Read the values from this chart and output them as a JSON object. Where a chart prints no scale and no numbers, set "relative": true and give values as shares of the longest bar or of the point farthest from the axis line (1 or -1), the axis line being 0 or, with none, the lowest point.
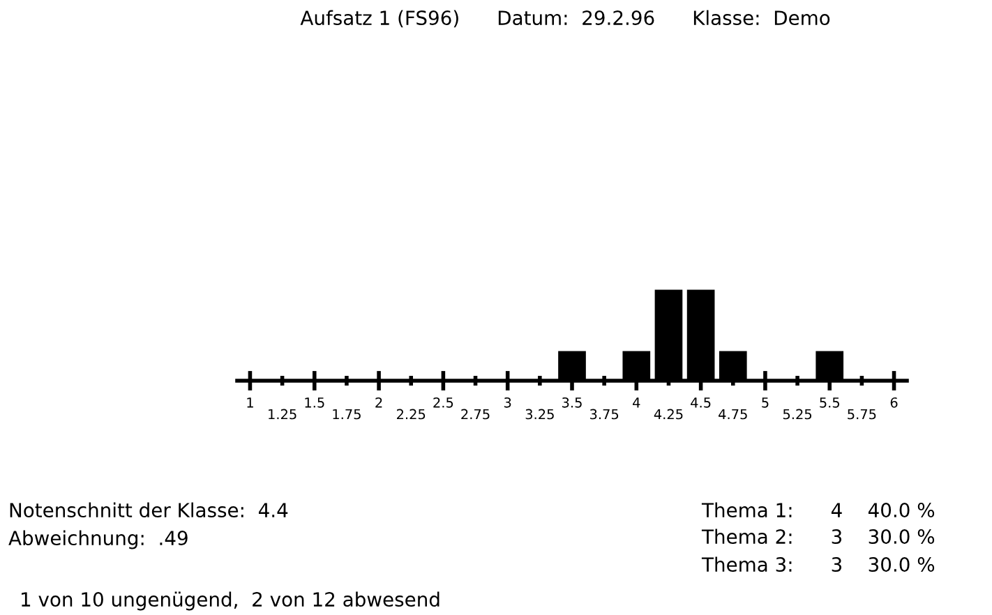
{
  "chart_data": {
    "type": "bar",
    "title": "Aufsatz 1 (FS96)      Datum:  29.2.96      Klasse:  Demo",
    "x": [
      3.5,
      4,
      4.25,
      4.5,
      4.75,
      5.5
    ],
    "values": [
      0.333,
      0.333,
      1,
      1,
      0.333,
      0.333
    ],
    "relative": true,
    "color": "#000000",
    "xlim": [
      0.9,
      6.1
    ],
    "xticks": [
      1,
      1.5,
      2,
      2.5,
      3,
      3.5,
      4,
      4.5,
      5,
      5.5,
      6
    ],
    "x2lim": [
      0.9,
      6.1
    ],
    "x2ticks": [
      1.25,
      1.75,
      2.25,
      2.75,
      3.25,
      3.75,
      4.25,
      4.75,
      5.25,
      5.75
    ],
    "grid": false,
    "legend": false,
    "annotations": [
      "Notenschnitt der Klasse:  4.4",
      "Abweichnung:  .49",
      "1 von 10 ungenügend,  2 von 12 abwesend",
      "Thema 1:      4    40.0 %",
      "Thema 2:      3    30.0 %",
      "Thema 3:      3    30.0 %"
    ]
  }
}
